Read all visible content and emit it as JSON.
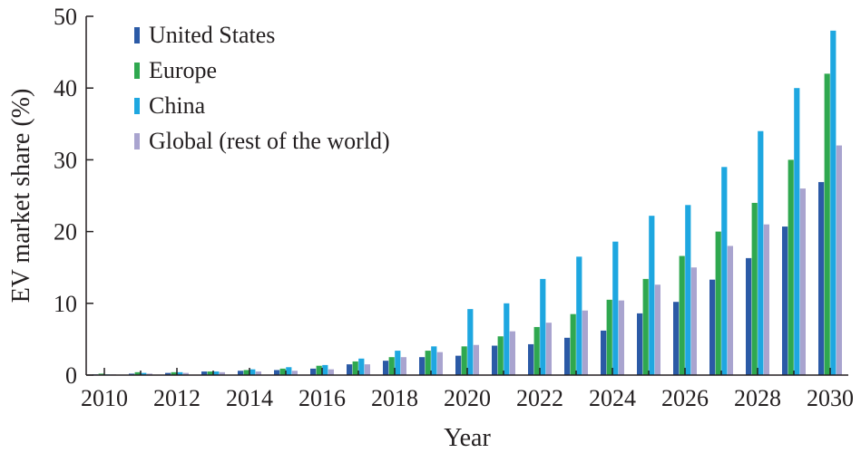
{
  "chart_data": {
    "type": "bar",
    "title": "",
    "xlabel": "Year",
    "ylabel": "EV market share (%)",
    "ylim": [
      0,
      50
    ],
    "yticks": [
      0,
      10,
      20,
      30,
      40,
      50
    ],
    "x": [
      2010,
      2011,
      2012,
      2013,
      2014,
      2015,
      2016,
      2017,
      2018,
      2019,
      2020,
      2021,
      2022,
      2023,
      2024,
      2025,
      2026,
      2027,
      2028,
      2029,
      2030
    ],
    "xtick_labels": [
      "2010",
      "2012",
      "2014",
      "2016",
      "2018",
      "2020",
      "2022",
      "2024",
      "2026",
      "2028",
      "2030"
    ],
    "grid": false,
    "legend_position": "top-left",
    "series": [
      {
        "name": "United States",
        "color": "#2b5aa6",
        "values": [
          0.1,
          0.2,
          0.3,
          0.5,
          0.6,
          0.7,
          0.9,
          1.5,
          2.0,
          2.5,
          2.7,
          4.1,
          4.3,
          5.2,
          6.2,
          8.6,
          10.2,
          13.3,
          16.3,
          20.7,
          26.9
        ]
      },
      {
        "name": "Europe",
        "color": "#2fa84f",
        "values": [
          0.2,
          0.4,
          0.4,
          0.5,
          0.7,
          0.9,
          1.3,
          1.9,
          2.5,
          3.4,
          4.0,
          5.4,
          6.7,
          8.5,
          10.5,
          13.4,
          16.6,
          20.0,
          24.0,
          30.0,
          42.0
        ]
      },
      {
        "name": "China",
        "color": "#1ea7e0",
        "values": [
          0.1,
          0.3,
          0.4,
          0.5,
          0.8,
          1.1,
          1.4,
          2.3,
          3.4,
          4.0,
          9.2,
          10.0,
          13.4,
          16.5,
          18.6,
          22.2,
          23.7,
          29.0,
          34.0,
          40.0,
          48.0
        ]
      },
      {
        "name": "Global (rest of the world)",
        "color": "#a9a4cf",
        "values": [
          0.1,
          0.2,
          0.3,
          0.4,
          0.5,
          0.6,
          0.8,
          1.5,
          2.5,
          3.2,
          4.2,
          6.1,
          7.3,
          9.0,
          10.4,
          12.6,
          15.0,
          18.0,
          21.0,
          26.0,
          32.0
        ]
      }
    ]
  }
}
